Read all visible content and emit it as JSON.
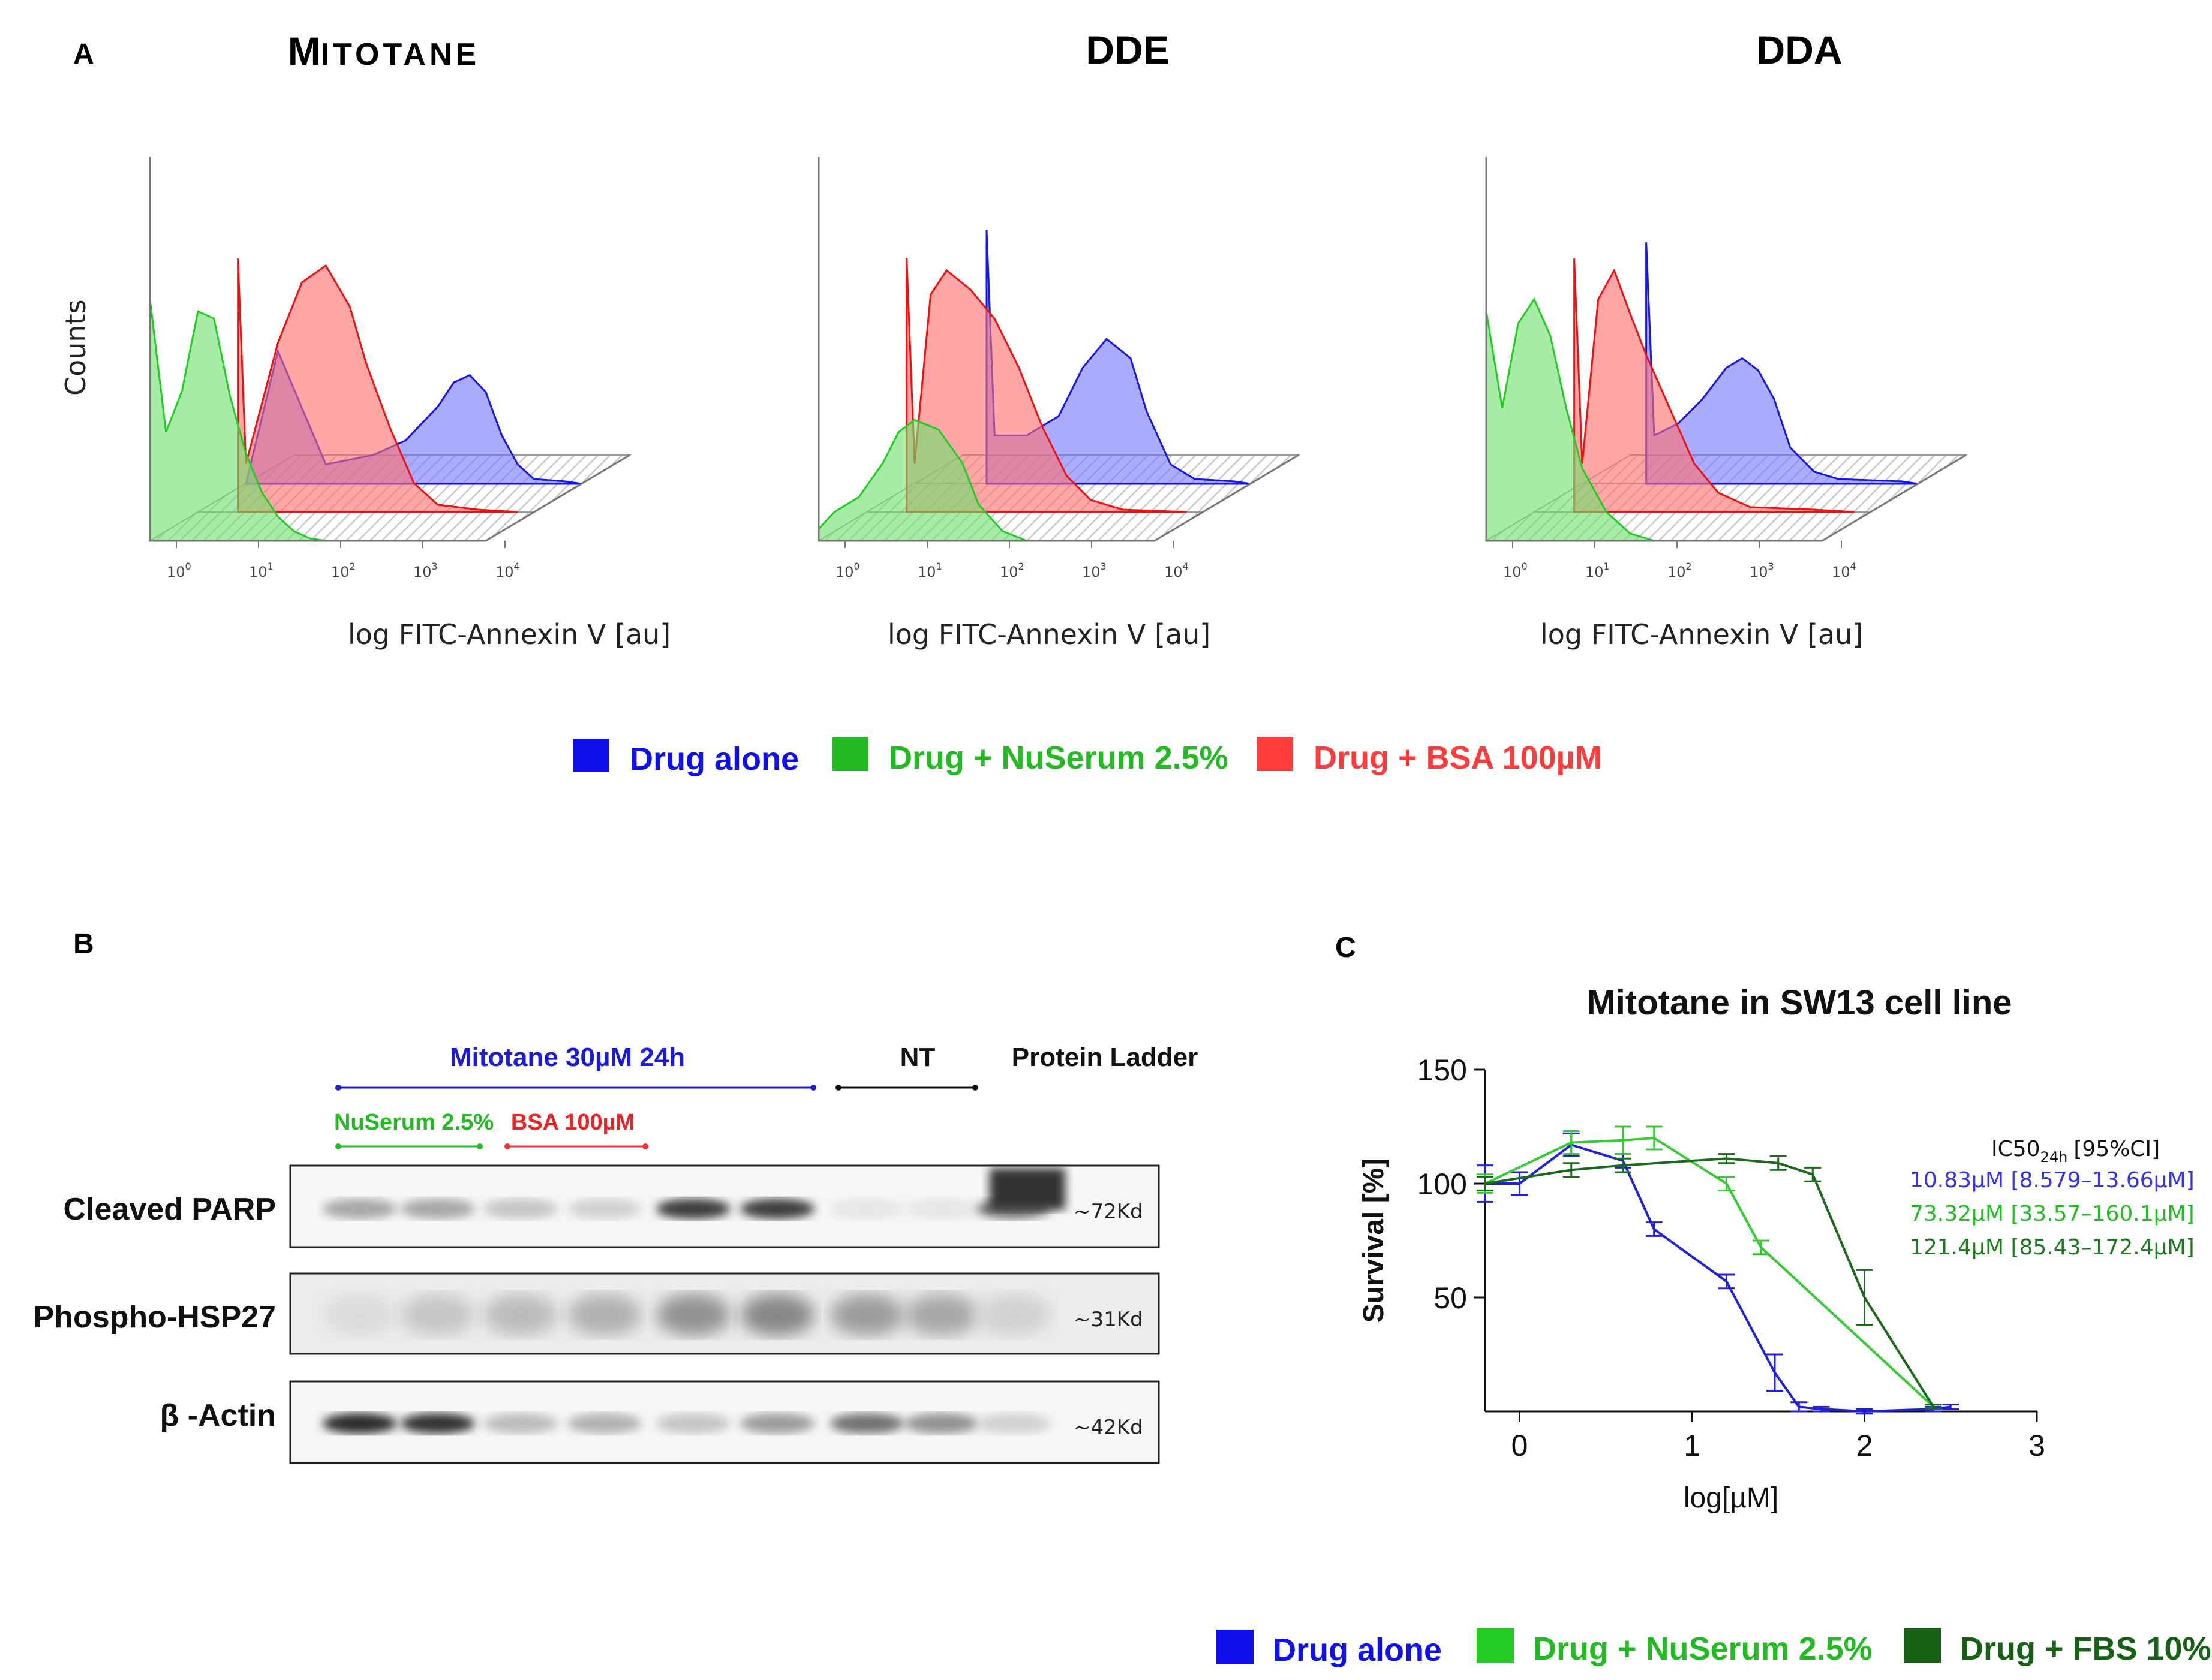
{
  "panelA": {
    "letter": "A",
    "titles": [
      "Mitotane",
      "DDE",
      "DDA"
    ],
    "ylabel": "Counts",
    "xlabel": "log FITC-Annexin  V [au]",
    "ticks": [
      "10",
      "10",
      "10",
      "10",
      "10"
    ],
    "tick_exps": [
      "0",
      "1",
      "2",
      "3",
      "4"
    ],
    "legend": [
      {
        "label": "Drug alone",
        "color": "#1010ee"
      },
      {
        "label": "Drug + NuSerum 2.5%",
        "color": "#22bb22"
      },
      {
        "label": "Drug  + BSA 100µM",
        "color": "#ff3b3b"
      }
    ]
  },
  "chart_data": [
    {
      "type": "area",
      "title": "Mitotane",
      "xlabel": "log FITC-Annexin  V [au]",
      "ylabel": "Counts",
      "x_scale": "log10",
      "xlim": [
        1,
        10000
      ],
      "series": [
        {
          "name": "Drug alone",
          "log_x": [
            0,
            0.4,
            1.0,
            1.6,
            2.0,
            2.4,
            2.6,
            2.8,
            3.0,
            3.2,
            3.4,
            3.6,
            4.0,
            4.2
          ],
          "counts": [
            0,
            0.55,
            0.08,
            0.12,
            0.18,
            0.32,
            0.42,
            0.45,
            0.38,
            0.2,
            0.08,
            0.02,
            0.01,
            0
          ]
        },
        {
          "name": "Drug + NuSerum 2.5%",
          "log_x": [
            0,
            0.2,
            0.4,
            0.6,
            0.8,
            1.0,
            1.2,
            1.4,
            1.6,
            1.8,
            2.0,
            2.2
          ],
          "counts": [
            1.0,
            0.45,
            0.62,
            0.95,
            0.92,
            0.6,
            0.36,
            0.2,
            0.1,
            0.04,
            0.01,
            0
          ]
        },
        {
          "name": "Drug + BSA 100µM",
          "log_x": [
            0.5,
            0.6,
            1.0,
            1.3,
            1.6,
            1.9,
            2.1,
            2.4,
            2.7,
            3.0,
            3.5,
            4.0
          ],
          "counts": [
            1.05,
            0.2,
            0.7,
            0.95,
            1.02,
            0.85,
            0.62,
            0.35,
            0.12,
            0.03,
            0.01,
            0
          ]
        }
      ]
    },
    {
      "type": "area",
      "title": "DDE",
      "xlabel": "log FITC-Annexin  V [au]",
      "ylabel": "Counts",
      "x_scale": "log10",
      "xlim": [
        1,
        10000
      ],
      "series": [
        {
          "name": "Drug alone",
          "log_x": [
            0.9,
            1.0,
            1.4,
            1.8,
            2.1,
            2.4,
            2.7,
            2.9,
            3.2,
            3.5,
            4.0,
            4.2
          ],
          "counts": [
            1.05,
            0.2,
            0.2,
            0.28,
            0.48,
            0.6,
            0.52,
            0.3,
            0.08,
            0.02,
            0.01,
            0
          ]
        },
        {
          "name": "Drug + NuSerum 2.5%",
          "log_x": [
            0,
            0.2,
            0.5,
            0.8,
            1.0,
            1.2,
            1.5,
            1.8,
            2.0,
            2.3,
            2.6
          ],
          "counts": [
            0.05,
            0.12,
            0.18,
            0.32,
            0.45,
            0.5,
            0.46,
            0.32,
            0.15,
            0.04,
            0
          ]
        },
        {
          "name": "Drug + BSA 100µM",
          "log_x": [
            0.5,
            0.6,
            0.8,
            1.0,
            1.3,
            1.6,
            1.9,
            2.2,
            2.5,
            2.8,
            3.2,
            4.0
          ],
          "counts": [
            1.05,
            0.2,
            0.9,
            1.0,
            0.92,
            0.8,
            0.6,
            0.35,
            0.15,
            0.05,
            0.01,
            0
          ]
        }
      ]
    },
    {
      "type": "area",
      "title": "DDA",
      "xlabel": "log FITC-Annexin  V [au]",
      "ylabel": "Counts",
      "x_scale": "log10",
      "xlim": [
        1,
        10000
      ],
      "series": [
        {
          "name": "Drug alone",
          "log_x": [
            0.8,
            0.9,
            1.2,
            1.5,
            1.8,
            2.0,
            2.2,
            2.4,
            2.6,
            2.9,
            3.2,
            4.0,
            4.2
          ],
          "counts": [
            1.0,
            0.2,
            0.25,
            0.35,
            0.48,
            0.52,
            0.47,
            0.35,
            0.15,
            0.05,
            0.02,
            0.01,
            0
          ]
        },
        {
          "name": "Drug + NuSerum 2.5%",
          "log_x": [
            0,
            0.2,
            0.4,
            0.6,
            0.8,
            1.0,
            1.2,
            1.5,
            1.8,
            2.1
          ],
          "counts": [
            0.95,
            0.55,
            0.9,
            1.0,
            0.85,
            0.55,
            0.3,
            0.12,
            0.03,
            0
          ]
        },
        {
          "name": "Drug + BSA 100µM",
          "log_x": [
            0.5,
            0.6,
            0.8,
            1.0,
            1.2,
            1.4,
            1.6,
            1.8,
            2.0,
            2.3,
            2.7,
            3.5,
            4.0
          ],
          "counts": [
            1.05,
            0.2,
            0.88,
            1.0,
            0.82,
            0.65,
            0.5,
            0.35,
            0.2,
            0.08,
            0.02,
            0.01,
            0
          ]
        }
      ]
    },
    {
      "type": "line",
      "title": "Mitotane in SW13 cell line",
      "xlabel": "log[µM]",
      "ylabel": "Survival [%]",
      "xlim": [
        -0.2,
        3
      ],
      "ylim": [
        0,
        150
      ],
      "xticks": [
        "0",
        "1",
        "2",
        "3"
      ],
      "yticks": [
        "50",
        "100",
        "150"
      ],
      "series": [
        {
          "name": "Drug alone",
          "color": "#2020dd",
          "x": [
            -0.2,
            0,
            0.3,
            0.6,
            0.78,
            1.2,
            1.48,
            1.62,
            1.75,
            2.0,
            2.4,
            2.5
          ],
          "y": [
            100,
            100,
            117,
            110,
            80,
            57,
            17,
            2,
            1,
            0,
            1,
            2
          ],
          "err": [
            8,
            5,
            5,
            3,
            3,
            3,
            8,
            2,
            1,
            1,
            1,
            1
          ]
        },
        {
          "name": "Drug + NuSerum 2.5%",
          "color": "#33cc33",
          "x": [
            -0.2,
            0.3,
            0.6,
            0.78,
            1.2,
            1.4,
            2.4
          ],
          "y": [
            100,
            118,
            119,
            120,
            100,
            72,
            2
          ],
          "err": [
            4,
            5,
            6,
            5,
            3,
            3,
            1
          ]
        },
        {
          "name": "Drug + FBS 10%",
          "color": "#1b6a1b",
          "x": [
            -0.2,
            0.3,
            0.6,
            1.2,
            1.5,
            1.7,
            2.0,
            2.4
          ],
          "y": [
            100,
            106,
            108,
            111,
            109,
            104,
            50,
            2
          ],
          "err": [
            3,
            3,
            3,
            2,
            3,
            3,
            12,
            1
          ]
        }
      ]
    }
  ],
  "panelB": {
    "letter": "B",
    "group_label": "Mitotane 30µM 24h",
    "nt_label": "NT",
    "ladder_label": "Protein Ladder",
    "nuserum_label": "NuSerum 2.5%",
    "bsa_label": "BSA 100µM",
    "rows": [
      {
        "label": "Cleaved PARP",
        "kd": "~72Kd",
        "bands": [
          0.35,
          0.35,
          0.2,
          0.15,
          0.85,
          0.85,
          0.05,
          0.05,
          0.6
        ]
      },
      {
        "label": "Phospho-HSP27",
        "kd": "~31Kd",
        "bands": [
          0.1,
          0.2,
          0.25,
          0.3,
          0.45,
          0.5,
          0.4,
          0.35,
          0.15
        ]
      },
      {
        "label": "β -Actin",
        "kd": "~42Kd",
        "bands": [
          0.95,
          0.9,
          0.25,
          0.3,
          0.2,
          0.4,
          0.6,
          0.45,
          0.15
        ]
      }
    ]
  },
  "panelC": {
    "letter": "C",
    "ic50_header": "IC50",
    "ic50_sub": "24h",
    "ic50_ci": "[95%CI]",
    "ic50_rows": [
      {
        "text": "10.83µM  [8.579–13.66µM]",
        "color": "#3333ee"
      },
      {
        "text": "73.32µM  [33.57–160.1µM]",
        "color": "#22bb22"
      },
      {
        "text": "121.4µM  [85.43–172.4µM]",
        "color": "#1b7a1b"
      }
    ],
    "legend": [
      {
        "label": "Drug alone",
        "color": "#1010ee"
      },
      {
        "label": "Drug + NuSerum 2.5%",
        "color": "#22cc22"
      },
      {
        "label": "Drug + FBS 10%",
        "color": "#176117"
      }
    ]
  }
}
